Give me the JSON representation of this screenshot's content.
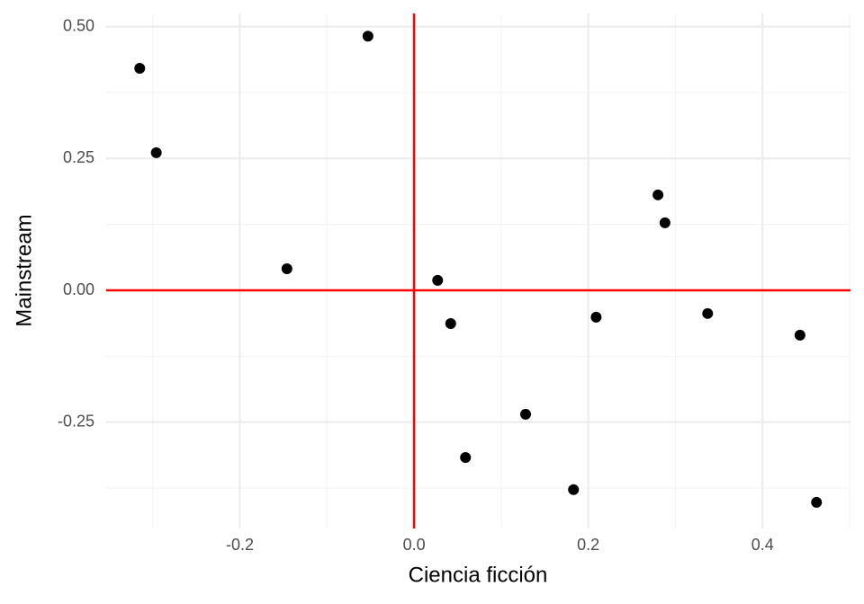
{
  "chart_data": {
    "type": "scatter",
    "x_label": "Ciencia ficción",
    "y_label": "Mainstream",
    "color": "#000000",
    "x": [
      -0.315,
      -0.296,
      -0.053,
      -0.146,
      0.027,
      0.042,
      0.059,
      0.128,
      0.183,
      0.209,
      0.28,
      0.288,
      0.337,
      0.443,
      0.462
    ],
    "values": [
      0.421,
      0.261,
      0.482,
      0.041,
      0.019,
      -0.063,
      -0.317,
      -0.235,
      -0.378,
      -0.051,
      0.181,
      0.128,
      -0.044,
      -0.085,
      -0.402
    ],
    "xlim": [
      -0.3535,
      0.501
    ],
    "ylim": [
      -0.4517,
      0.525
    ],
    "xticks": [
      -0.2,
      {
        "value": 0,
        "label": "0.0"
      },
      0.2,
      0.4
    ],
    "yticks": [
      {
        "value": -0.25,
        "label": "-0.25"
      },
      {
        "value": 0,
        "label": "0.00"
      },
      {
        "value": 0.25,
        "label": "0.25"
      },
      {
        "value": 0.5,
        "label": "0.50"
      }
    ],
    "x_minor_ticks": [
      -0.3,
      -0.1,
      0.1,
      0.3,
      0.5
    ],
    "y_minor_ticks": [
      -0.375,
      -0.125,
      0.125,
      0.375
    ],
    "grid": true,
    "hlines": [
      0
    ],
    "vlines": [
      0
    ],
    "ref_line_color": "#ff0000"
  }
}
